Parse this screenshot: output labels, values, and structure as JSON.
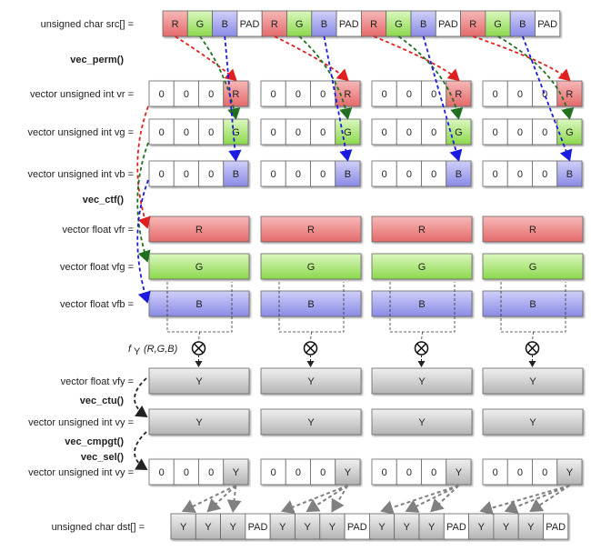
{
  "src": {
    "label": "unsigned char src[] =",
    "cells": [
      "R",
      "G",
      "B",
      "PAD",
      "R",
      "G",
      "B",
      "PAD",
      "R",
      "G",
      "B",
      "PAD",
      "R",
      "G",
      "B",
      "PAD"
    ]
  },
  "dst": {
    "label": "unsigned char dst[] =",
    "cells": [
      "Y",
      "Y",
      "Y",
      "PAD",
      "Y",
      "Y",
      "Y",
      "PAD",
      "Y",
      "Y",
      "Y",
      "PAD",
      "Y",
      "Y",
      "Y",
      "PAD"
    ]
  },
  "functions": {
    "perm": "vec_perm()",
    "ctf": "vec_ctf()",
    "ctu": "vec_ctu()",
    "cmpgt": "vec_cmpgt()",
    "sel": "vec_sel()"
  },
  "formula": {
    "f": "f",
    "sub": "Y",
    "args": "(R,G,B)"
  },
  "rows": {
    "vr": {
      "label": "vector unsigned int vr =",
      "cells": [
        "0",
        "0",
        "0",
        "R"
      ]
    },
    "vg": {
      "label": "vector unsigned int vg =",
      "cells": [
        "0",
        "0",
        "0",
        "G"
      ]
    },
    "vb": {
      "label": "vector unsigned int vb =",
      "cells": [
        "0",
        "0",
        "0",
        "B"
      ]
    },
    "vfr": {
      "label": "vector float vfr =",
      "value": "R"
    },
    "vfg": {
      "label": "vector float vfg =",
      "value": "G"
    },
    "vfb": {
      "label": "vector float vfb =",
      "value": "B"
    },
    "vfy": {
      "label": "vector float vfy =",
      "value": "Y"
    },
    "vy": {
      "label": "vector unsigned int vy =",
      "value": "Y"
    },
    "vy2": {
      "label": "vector unsigned int vy =",
      "cells": [
        "0",
        "0",
        "0",
        "Y"
      ]
    }
  },
  "colors": {
    "R": [
      "#f7b8b8",
      "#e46a6a"
    ],
    "G": [
      "#dcf8c0",
      "#8cd84c"
    ],
    "B": [
      "#d0d0f8",
      "#8a8ae6"
    ],
    "Y": [
      "#f0f0f0",
      "#b4b4b4"
    ],
    "0": [
      "#ffffff",
      "#ffffff"
    ],
    "PAD": [
      "#ffffff",
      "#ffffff"
    ],
    "arrow_red": "#e02020",
    "arrow_green": "#207020",
    "arrow_blue": "#1a1ae0",
    "arrow_gray": "#808080"
  }
}
